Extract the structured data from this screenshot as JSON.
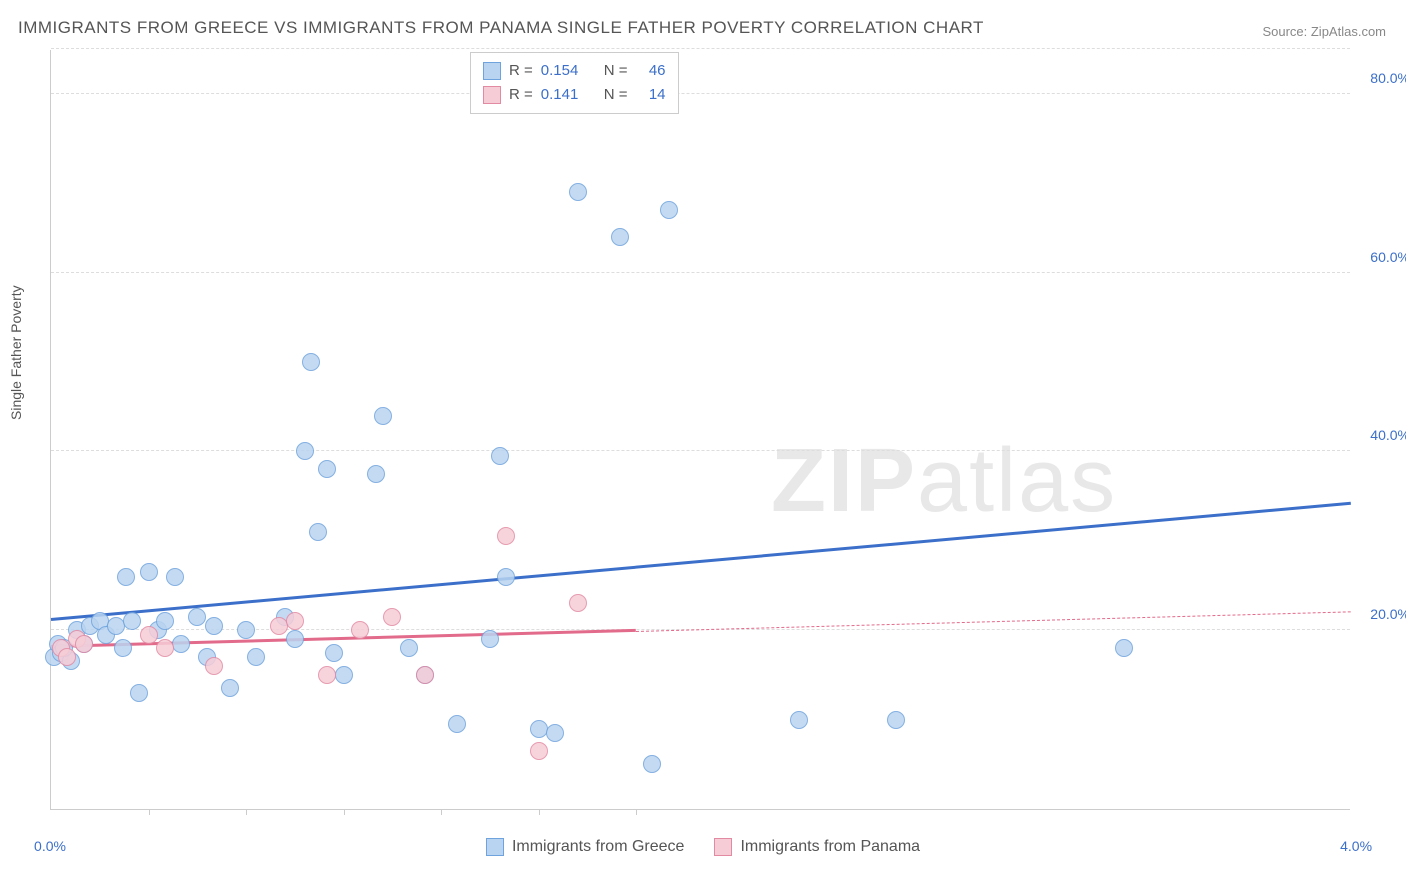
{
  "title": "IMMIGRANTS FROM GREECE VS IMMIGRANTS FROM PANAMA SINGLE FATHER POVERTY CORRELATION CHART",
  "source": "Source: ZipAtlas.com",
  "ylabel": "Single Father Poverty",
  "watermark": "ZIPatlas",
  "chart": {
    "type": "scatter",
    "background": "#ffffff",
    "grid_color": "#dddddd",
    "axis_color": "#cccccc",
    "xlim": [
      0.0,
      4.0
    ],
    "ylim": [
      0.0,
      85.0
    ],
    "yticks": [
      20.0,
      40.0,
      60.0,
      80.0
    ],
    "ytick_labels": [
      "20.0%",
      "40.0%",
      "60.0%",
      "80.0%"
    ],
    "xticks": [
      0.0,
      4.0
    ],
    "xtick_labels": [
      "0.0%",
      "4.0%"
    ],
    "xtick_minor": [
      0.3,
      0.6,
      0.9,
      1.2,
      1.5,
      1.8
    ],
    "marker_radius": 9,
    "marker_border_width": 1,
    "trend_line_width": 3
  },
  "series": [
    {
      "name": "Immigrants from Greece",
      "fill": "#b9d4f0",
      "stroke": "#6fa3dd",
      "line_color": "#3b6fc9",
      "r": 0.154,
      "n": 46,
      "trend": {
        "x1": 0.0,
        "y1": 21.0,
        "x2": 4.0,
        "y2": 34.0,
        "dashed_after": null
      },
      "points": [
        {
          "x": 0.01,
          "y": 17
        },
        {
          "x": 0.02,
          "y": 18.5
        },
        {
          "x": 0.03,
          "y": 17.5
        },
        {
          "x": 0.06,
          "y": 16.5
        },
        {
          "x": 0.04,
          "y": 18
        },
        {
          "x": 0.08,
          "y": 20
        },
        {
          "x": 0.1,
          "y": 18.5
        },
        {
          "x": 0.12,
          "y": 20.5
        },
        {
          "x": 0.15,
          "y": 21
        },
        {
          "x": 0.17,
          "y": 19.5
        },
        {
          "x": 0.2,
          "y": 20.5
        },
        {
          "x": 0.22,
          "y": 18
        },
        {
          "x": 0.23,
          "y": 26
        },
        {
          "x": 0.25,
          "y": 21
        },
        {
          "x": 0.27,
          "y": 13
        },
        {
          "x": 0.3,
          "y": 26.5
        },
        {
          "x": 0.33,
          "y": 20
        },
        {
          "x": 0.35,
          "y": 21
        },
        {
          "x": 0.38,
          "y": 26
        },
        {
          "x": 0.4,
          "y": 18.5
        },
        {
          "x": 0.45,
          "y": 21.5
        },
        {
          "x": 0.48,
          "y": 17
        },
        {
          "x": 0.5,
          "y": 20.5
        },
        {
          "x": 0.55,
          "y": 13.5
        },
        {
          "x": 0.6,
          "y": 20
        },
        {
          "x": 0.63,
          "y": 17
        },
        {
          "x": 0.72,
          "y": 21.5
        },
        {
          "x": 0.75,
          "y": 19
        },
        {
          "x": 0.78,
          "y": 40
        },
        {
          "x": 0.8,
          "y": 50
        },
        {
          "x": 0.82,
          "y": 31
        },
        {
          "x": 0.85,
          "y": 38
        },
        {
          "x": 0.87,
          "y": 17.5
        },
        {
          "x": 0.9,
          "y": 15
        },
        {
          "x": 1.0,
          "y": 37.5
        },
        {
          "x": 1.02,
          "y": 44
        },
        {
          "x": 1.1,
          "y": 18
        },
        {
          "x": 1.15,
          "y": 15
        },
        {
          "x": 1.25,
          "y": 9.5
        },
        {
          "x": 1.35,
          "y": 19
        },
        {
          "x": 1.38,
          "y": 39.5
        },
        {
          "x": 1.4,
          "y": 26
        },
        {
          "x": 1.5,
          "y": 9
        },
        {
          "x": 1.55,
          "y": 8.5
        },
        {
          "x": 1.62,
          "y": 69
        },
        {
          "x": 1.75,
          "y": 64
        },
        {
          "x": 1.9,
          "y": 67
        },
        {
          "x": 1.85,
          "y": 5
        },
        {
          "x": 2.3,
          "y": 10
        },
        {
          "x": 2.6,
          "y": 10
        },
        {
          "x": 3.3,
          "y": 18
        }
      ]
    },
    {
      "name": "Immigrants from Panama",
      "fill": "#f6cdd7",
      "stroke": "#e38aa3",
      "line_color": "#e26a8a",
      "r": 0.141,
      "n": 14,
      "trend": {
        "x1": 0.0,
        "y1": 18.0,
        "x2": 4.0,
        "y2": 22.0,
        "dashed_after": 1.8
      },
      "points": [
        {
          "x": 0.03,
          "y": 18
        },
        {
          "x": 0.05,
          "y": 17
        },
        {
          "x": 0.08,
          "y": 19
        },
        {
          "x": 0.1,
          "y": 18.5
        },
        {
          "x": 0.3,
          "y": 19.5
        },
        {
          "x": 0.35,
          "y": 18
        },
        {
          "x": 0.5,
          "y": 16
        },
        {
          "x": 0.7,
          "y": 20.5
        },
        {
          "x": 0.75,
          "y": 21
        },
        {
          "x": 0.85,
          "y": 15
        },
        {
          "x": 0.95,
          "y": 20
        },
        {
          "x": 1.05,
          "y": 21.5
        },
        {
          "x": 1.15,
          "y": 15
        },
        {
          "x": 1.4,
          "y": 30.5
        },
        {
          "x": 1.5,
          "y": 6.5
        },
        {
          "x": 1.62,
          "y": 23
        }
      ]
    }
  ],
  "legend_top": {
    "r_label": "R =",
    "n_label": "N ="
  }
}
